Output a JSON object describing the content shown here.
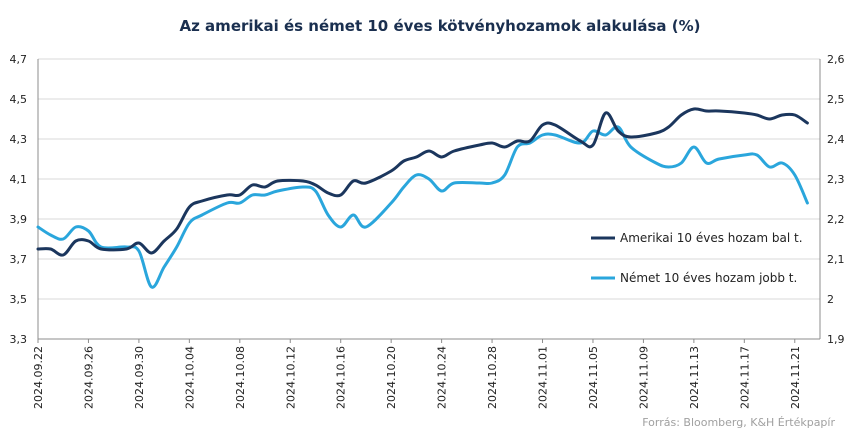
{
  "chart_data": {
    "type": "line",
    "title": "Az amerikai és német 10 éves kötvényhozamok alakulása (%)",
    "source": "Forrás: Bloomberg, K&H Értékpapír",
    "legend_position": "right",
    "grid": true,
    "y_left": {
      "min": 3.3,
      "max": 4.7,
      "ticks": [
        "3,3",
        "3,5",
        "3,7",
        "3,9",
        "4,1",
        "4,3",
        "4,5",
        "4,7"
      ]
    },
    "y_right": {
      "min": 1.9,
      "max": 2.6,
      "ticks": [
        "1,9",
        "2",
        "2,1",
        "2,2",
        "2,3",
        "2,4",
        "2,5",
        "2,6"
      ]
    },
    "x_ticks": [
      "2024.09.22",
      "2024.09.26",
      "2024.09.30",
      "2024.10.04",
      "2024.10.08",
      "2024.10.12",
      "2024.10.16",
      "2024.10.20",
      "2024.10.24",
      "2024.10.28",
      "2024.11.01",
      "2024.11.05",
      "2024.11.09",
      "2024.11.13",
      "2024.11.17",
      "2024.11.21"
    ],
    "series": [
      {
        "name": "Amerikai 10 éves hozam bal t.",
        "axis": "left",
        "color": "#1b365d",
        "points": [
          [
            "2024.09.22",
            3.75
          ],
          [
            "2024.09.23",
            3.75
          ],
          [
            "2024.09.24",
            3.72
          ],
          [
            "2024.09.25",
            3.79
          ],
          [
            "2024.09.26",
            3.79
          ],
          [
            "2024.09.27",
            3.75
          ],
          [
            "2024.09.29",
            3.75
          ],
          [
            "2024.09.30",
            3.78
          ],
          [
            "2024.10.01",
            3.73
          ],
          [
            "2024.10.02",
            3.79
          ],
          [
            "2024.10.03",
            3.85
          ],
          [
            "2024.10.04",
            3.96
          ],
          [
            "2024.10.05",
            3.99
          ],
          [
            "2024.10.07",
            4.02
          ],
          [
            "2024.10.08",
            4.02
          ],
          [
            "2024.10.09",
            4.07
          ],
          [
            "2024.10.10",
            4.06
          ],
          [
            "2024.10.11",
            4.09
          ],
          [
            "2024.10.13",
            4.09
          ],
          [
            "2024.10.14",
            4.07
          ],
          [
            "2024.10.15",
            4.03
          ],
          [
            "2024.10.16",
            4.02
          ],
          [
            "2024.10.17",
            4.09
          ],
          [
            "2024.10.18",
            4.08
          ],
          [
            "2024.10.20",
            4.14
          ],
          [
            "2024.10.21",
            4.19
          ],
          [
            "2024.10.22",
            4.21
          ],
          [
            "2024.10.23",
            4.24
          ],
          [
            "2024.10.24",
            4.21
          ],
          [
            "2024.10.25",
            4.24
          ],
          [
            "2024.10.27",
            4.27
          ],
          [
            "2024.10.28",
            4.28
          ],
          [
            "2024.10.29",
            4.26
          ],
          [
            "2024.10.30",
            4.29
          ],
          [
            "2024.10.31",
            4.29
          ],
          [
            "2024.11.01",
            4.37
          ],
          [
            "2024.11.02",
            4.37
          ],
          [
            "2024.11.04",
            4.29
          ],
          [
            "2024.11.05",
            4.27
          ],
          [
            "2024.11.06",
            4.43
          ],
          [
            "2024.11.07",
            4.34
          ],
          [
            "2024.11.08",
            4.31
          ],
          [
            "2024.11.10",
            4.33
          ],
          [
            "2024.11.11",
            4.36
          ],
          [
            "2024.11.12",
            4.42
          ],
          [
            "2024.11.13",
            4.45
          ],
          [
            "2024.11.14",
            4.44
          ],
          [
            "2024.11.15",
            4.44
          ],
          [
            "2024.11.17",
            4.43
          ],
          [
            "2024.11.18",
            4.42
          ],
          [
            "2024.11.19",
            4.4
          ],
          [
            "2024.11.20",
            4.42
          ],
          [
            "2024.11.21",
            4.42
          ],
          [
            "2024.11.22",
            4.38
          ]
        ]
      },
      {
        "name": "Német 10 éves hozam jobb t.",
        "axis": "right",
        "color": "#2aa6dc",
        "points": [
          [
            "2024.09.22",
            2.18
          ],
          [
            "2024.09.23",
            2.16
          ],
          [
            "2024.09.24",
            2.15
          ],
          [
            "2024.09.25",
            2.18
          ],
          [
            "2024.09.26",
            2.17
          ],
          [
            "2024.09.27",
            2.13
          ],
          [
            "2024.09.29",
            2.13
          ],
          [
            "2024.09.30",
            2.12
          ],
          [
            "2024.10.01",
            2.03
          ],
          [
            "2024.10.02",
            2.08
          ],
          [
            "2024.10.03",
            2.13
          ],
          [
            "2024.10.04",
            2.19
          ],
          [
            "2024.10.05",
            2.21
          ],
          [
            "2024.10.07",
            2.24
          ],
          [
            "2024.10.08",
            2.24
          ],
          [
            "2024.10.09",
            2.26
          ],
          [
            "2024.10.10",
            2.26
          ],
          [
            "2024.10.11",
            2.27
          ],
          [
            "2024.10.13",
            2.28
          ],
          [
            "2024.10.14",
            2.27
          ],
          [
            "2024.10.15",
            2.21
          ],
          [
            "2024.10.16",
            2.18
          ],
          [
            "2024.10.17",
            2.21
          ],
          [
            "2024.10.18",
            2.18
          ],
          [
            "2024.10.20",
            2.24
          ],
          [
            "2024.10.21",
            2.28
          ],
          [
            "2024.10.22",
            2.31
          ],
          [
            "2024.10.23",
            2.3
          ],
          [
            "2024.10.24",
            2.27
          ],
          [
            "2024.10.25",
            2.29
          ],
          [
            "2024.10.27",
            2.29
          ],
          [
            "2024.10.28",
            2.29
          ],
          [
            "2024.10.29",
            2.31
          ],
          [
            "2024.10.30",
            2.38
          ],
          [
            "2024.10.31",
            2.39
          ],
          [
            "2024.11.01",
            2.41
          ],
          [
            "2024.11.02",
            2.41
          ],
          [
            "2024.11.04",
            2.39
          ],
          [
            "2024.11.05",
            2.42
          ],
          [
            "2024.11.06",
            2.41
          ],
          [
            "2024.11.07",
            2.43
          ],
          [
            "2024.11.08",
            2.38
          ],
          [
            "2024.11.10",
            2.34
          ],
          [
            "2024.11.11",
            2.33
          ],
          [
            "2024.11.12",
            2.34
          ],
          [
            "2024.11.13",
            2.38
          ],
          [
            "2024.11.14",
            2.34
          ],
          [
            "2024.11.15",
            2.35
          ],
          [
            "2024.11.17",
            2.36
          ],
          [
            "2024.11.18",
            2.36
          ],
          [
            "2024.11.19",
            2.33
          ],
          [
            "2024.11.20",
            2.34
          ],
          [
            "2024.11.21",
            2.31
          ],
          [
            "2024.11.22",
            2.24
          ]
        ]
      }
    ]
  }
}
